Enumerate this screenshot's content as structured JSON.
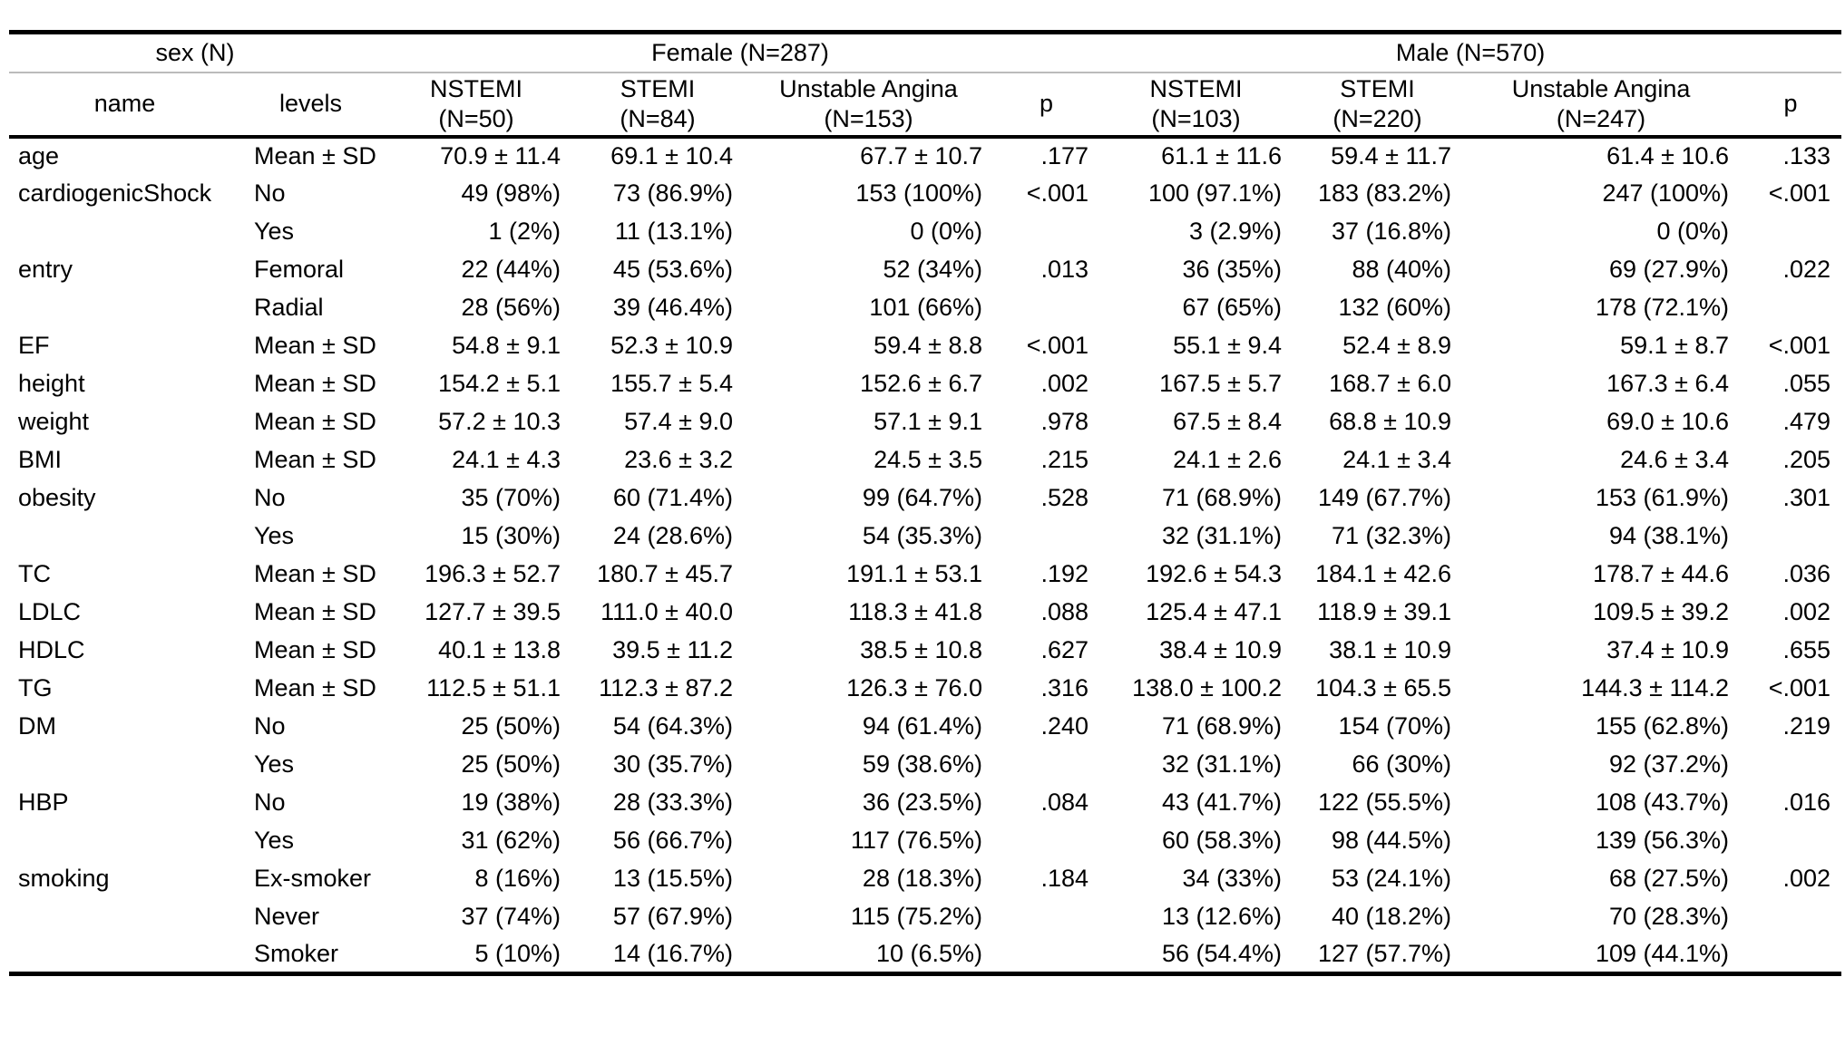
{
  "page": {
    "background": "#ffffff",
    "text_color": "#000000",
    "rule_dark": "#000000",
    "rule_light": "#bbbbbb"
  },
  "chart_data": {
    "type": "table",
    "group_headers": [
      {
        "label": "sex (N)",
        "span": 2
      },
      {
        "label": "Female (N=287)",
        "span": 4
      },
      {
        "label": "Male (N=570)",
        "span": 4
      }
    ],
    "columns": [
      {
        "label": "name"
      },
      {
        "label": "levels"
      },
      {
        "label": "NSTEMI",
        "sub": "(N=50)"
      },
      {
        "label": "STEMI",
        "sub": "(N=84)"
      },
      {
        "label": "Unstable Angina",
        "sub": "(N=153)"
      },
      {
        "label": "p"
      },
      {
        "label": "NSTEMI",
        "sub": "(N=103)"
      },
      {
        "label": "STEMI",
        "sub": "(N=220)"
      },
      {
        "label": "Unstable Angina",
        "sub": "(N=247)"
      },
      {
        "label": "p"
      }
    ],
    "rows": [
      [
        "age",
        "Mean ± SD",
        "70.9 ± 11.4",
        "69.1 ± 10.4",
        "67.7 ± 10.7",
        ".177",
        "61.1 ± 11.6",
        "59.4 ± 11.7",
        "61.4 ± 10.6",
        ".133"
      ],
      [
        "cardiogenicShock",
        "No",
        "49 (98%)",
        "73 (86.9%)",
        "153 (100%)",
        "<.001",
        "100 (97.1%)",
        "183 (83.2%)",
        "247 (100%)",
        "<.001"
      ],
      [
        "",
        "Yes",
        "1 (2%)",
        "11 (13.1%)",
        "0 (0%)",
        "",
        "3 (2.9%)",
        "37 (16.8%)",
        "0 (0%)",
        ""
      ],
      [
        "entry",
        "Femoral",
        "22 (44%)",
        "45 (53.6%)",
        "52 (34%)",
        ".013",
        "36 (35%)",
        "88 (40%)",
        "69 (27.9%)",
        ".022"
      ],
      [
        "",
        "Radial",
        "28 (56%)",
        "39 (46.4%)",
        "101 (66%)",
        "",
        "67 (65%)",
        "132 (60%)",
        "178 (72.1%)",
        ""
      ],
      [
        "EF",
        "Mean ± SD",
        "54.8 ± 9.1",
        "52.3 ± 10.9",
        "59.4 ± 8.8",
        "<.001",
        "55.1 ± 9.4",
        "52.4 ± 8.9",
        "59.1 ± 8.7",
        "<.001"
      ],
      [
        "height",
        "Mean ± SD",
        "154.2 ± 5.1",
        "155.7 ± 5.4",
        "152.6 ± 6.7",
        ".002",
        "167.5 ± 5.7",
        "168.7 ± 6.0",
        "167.3 ± 6.4",
        ".055"
      ],
      [
        "weight",
        "Mean ± SD",
        "57.2 ± 10.3",
        "57.4 ± 9.0",
        "57.1 ± 9.1",
        ".978",
        "67.5 ± 8.4",
        "68.8 ± 10.9",
        "69.0 ± 10.6",
        ".479"
      ],
      [
        "BMI",
        "Mean ± SD",
        "24.1 ± 4.3",
        "23.6 ± 3.2",
        "24.5 ± 3.5",
        ".215",
        "24.1 ± 2.6",
        "24.1 ± 3.4",
        "24.6 ± 3.4",
        ".205"
      ],
      [
        "obesity",
        "No",
        "35 (70%)",
        "60 (71.4%)",
        "99 (64.7%)",
        ".528",
        "71 (68.9%)",
        "149 (67.7%)",
        "153 (61.9%)",
        ".301"
      ],
      [
        "",
        "Yes",
        "15 (30%)",
        "24 (28.6%)",
        "54 (35.3%)",
        "",
        "32 (31.1%)",
        "71 (32.3%)",
        "94 (38.1%)",
        ""
      ],
      [
        "TC",
        "Mean ± SD",
        "196.3 ± 52.7",
        "180.7 ± 45.7",
        "191.1 ± 53.1",
        ".192",
        "192.6 ± 54.3",
        "184.1 ± 42.6",
        "178.7 ± 44.6",
        ".036"
      ],
      [
        "LDLC",
        "Mean ± SD",
        "127.7 ± 39.5",
        "111.0 ± 40.0",
        "118.3 ± 41.8",
        ".088",
        "125.4 ± 47.1",
        "118.9 ± 39.1",
        "109.5 ± 39.2",
        ".002"
      ],
      [
        "HDLC",
        "Mean ± SD",
        "40.1 ± 13.8",
        "39.5 ± 11.2",
        "38.5 ± 10.8",
        ".627",
        "38.4 ± 10.9",
        "38.1 ± 10.9",
        "37.4 ± 10.9",
        ".655"
      ],
      [
        "TG",
        "Mean ± SD",
        "112.5 ± 51.1",
        "112.3 ± 87.2",
        "126.3 ± 76.0",
        ".316",
        "138.0 ± 100.2",
        "104.3 ± 65.5",
        "144.3 ± 114.2",
        "<.001"
      ],
      [
        "DM",
        "No",
        "25 (50%)",
        "54 (64.3%)",
        "94 (61.4%)",
        ".240",
        "71 (68.9%)",
        "154 (70%)",
        "155 (62.8%)",
        ".219"
      ],
      [
        "",
        "Yes",
        "25 (50%)",
        "30 (35.7%)",
        "59 (38.6%)",
        "",
        "32 (31.1%)",
        "66 (30%)",
        "92 (37.2%)",
        ""
      ],
      [
        "HBP",
        "No",
        "19 (38%)",
        "28 (33.3%)",
        "36 (23.5%)",
        ".084",
        "43 (41.7%)",
        "122 (55.5%)",
        "108 (43.7%)",
        ".016"
      ],
      [
        "",
        "Yes",
        "31 (62%)",
        "56 (66.7%)",
        "117 (76.5%)",
        "",
        "60 (58.3%)",
        "98 (44.5%)",
        "139 (56.3%)",
        ""
      ],
      [
        "smoking",
        "Ex-smoker",
        "8 (16%)",
        "13 (15.5%)",
        "28 (18.3%)",
        ".184",
        "34 (33%)",
        "53 (24.1%)",
        "68 (27.5%)",
        ".002"
      ],
      [
        "",
        "Never",
        "37 (74%)",
        "57 (67.9%)",
        "115 (75.2%)",
        "",
        "13 (12.6%)",
        "40 (18.2%)",
        "70 (28.3%)",
        ""
      ],
      [
        "",
        "Smoker",
        "5 (10%)",
        "14 (16.7%)",
        "10 (6.5%)",
        "",
        "56 (54.4%)",
        "127 (57.7%)",
        "109 (44.1%)",
        ""
      ]
    ]
  }
}
